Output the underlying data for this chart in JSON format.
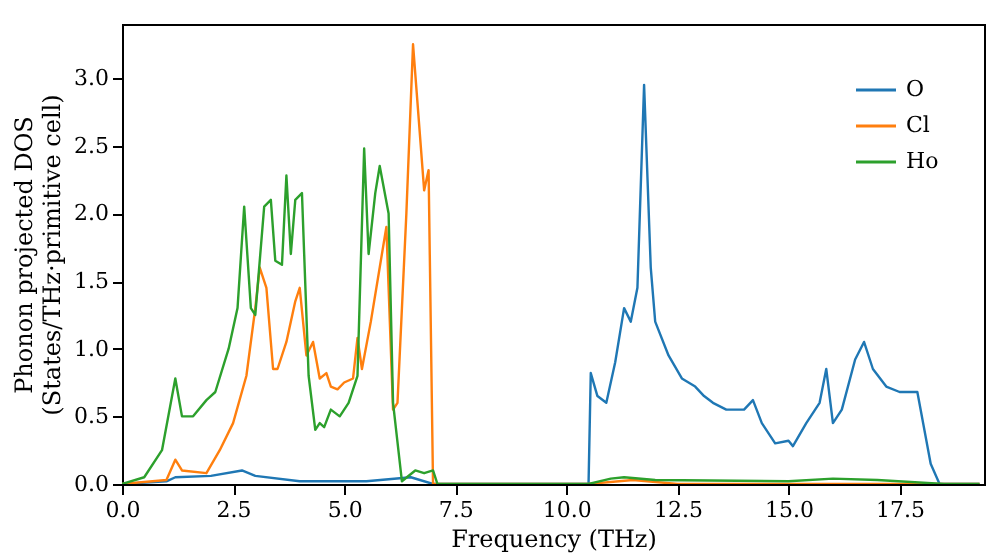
{
  "chart_data": {
    "type": "line",
    "xlabel": "Frequency (THz)",
    "ylabel": "Phonon projected DOS\n(States/THz·primitive cell)",
    "xlim": [
      0,
      19.4
    ],
    "ylim": [
      0,
      3.4
    ],
    "xticks": [
      {
        "value": 0,
        "label": "0.0"
      },
      2.5,
      {
        "value": 5,
        "label": "5.0"
      },
      7.5,
      {
        "value": 10,
        "label": "10.0"
      },
      12.5,
      {
        "value": 15,
        "label": "15.0"
      },
      17.5
    ],
    "yticks": [
      {
        "value": 0,
        "label": "0.0"
      },
      0.5,
      {
        "value": 1,
        "label": "1.0"
      },
      1.5,
      {
        "value": 2,
        "label": "2.0"
      },
      2.5,
      {
        "value": 3,
        "label": "3.0"
      }
    ],
    "legend": "top right",
    "grid": false,
    "line_style": "solid",
    "marker": "none",
    "series": [
      {
        "name": "O",
        "color": "#1f77b4",
        "x": [
          0,
          1,
          1.2,
          2.0,
          2.7,
          3.0,
          4,
          5.5,
          6.5,
          7.0,
          10.5,
          10.55,
          10.7,
          10.9,
          11.1,
          11.3,
          11.45,
          11.6,
          11.75,
          11.9,
          12.0,
          12.3,
          12.6,
          12.9,
          13.1,
          13.3,
          13.6,
          14.0,
          14.2,
          14.4,
          14.7,
          15.0,
          15.1,
          15.4,
          15.7,
          15.85,
          16.0,
          16.2,
          16.5,
          16.7,
          16.9,
          17.2,
          17.5,
          17.9,
          18.2,
          18.4,
          19.3
        ],
        "values": [
          0,
          0.02,
          0.05,
          0.06,
          0.1,
          0.06,
          0.02,
          0.02,
          0.05,
          0,
          0,
          0.82,
          0.65,
          0.6,
          0.9,
          1.3,
          1.2,
          1.45,
          2.95,
          1.6,
          1.2,
          0.95,
          0.78,
          0.72,
          0.65,
          0.6,
          0.55,
          0.55,
          0.62,
          0.45,
          0.3,
          0.32,
          0.28,
          0.45,
          0.6,
          0.85,
          0.45,
          0.55,
          0.92,
          1.05,
          0.85,
          0.72,
          0.68,
          0.68,
          0.15,
          0,
          0
        ]
      },
      {
        "name": "Cl",
        "color": "#ff7f0e",
        "x": [
          0,
          1.0,
          1.2,
          1.35,
          1.9,
          2.2,
          2.5,
          2.8,
          3.0,
          3.1,
          3.25,
          3.4,
          3.5,
          3.7,
          3.9,
          4.0,
          4.15,
          4.3,
          4.45,
          4.6,
          4.7,
          4.85,
          5.0,
          5.2,
          5.3,
          5.4,
          5.6,
          5.8,
          5.95,
          6.1,
          6.2,
          6.4,
          6.55,
          6.8,
          6.9,
          7.0,
          10.5,
          11.5,
          12.5,
          19.3
        ],
        "values": [
          0,
          0.03,
          0.18,
          0.1,
          0.08,
          0.25,
          0.45,
          0.8,
          1.3,
          1.6,
          1.45,
          0.85,
          0.85,
          1.05,
          1.35,
          1.45,
          0.95,
          1.05,
          0.78,
          0.82,
          0.72,
          0.7,
          0.75,
          0.78,
          1.08,
          0.85,
          1.2,
          1.6,
          1.9,
          0.55,
          0.6,
          2.0,
          3.25,
          2.17,
          2.32,
          0,
          0,
          0.03,
          0,
          0
        ]
      },
      {
        "name": "Ho",
        "color": "#2ca02c",
        "x": [
          0,
          0.5,
          0.9,
          1.2,
          1.35,
          1.6,
          1.9,
          2.1,
          2.4,
          2.6,
          2.75,
          2.9,
          3.0,
          3.2,
          3.35,
          3.45,
          3.6,
          3.7,
          3.8,
          3.9,
          4.05,
          4.2,
          4.35,
          4.45,
          4.55,
          4.7,
          4.9,
          5.1,
          5.3,
          5.45,
          5.55,
          5.7,
          5.8,
          6.0,
          6.1,
          6.3,
          6.6,
          6.8,
          7.0,
          7.1,
          10.5,
          11.0,
          11.3,
          12.0,
          15.0,
          16.0,
          17.0,
          18.5,
          19.3
        ],
        "values": [
          0,
          0.05,
          0.25,
          0.78,
          0.5,
          0.5,
          0.62,
          0.68,
          1.0,
          1.3,
          2.05,
          1.3,
          1.25,
          2.05,
          2.1,
          1.65,
          1.62,
          2.28,
          1.7,
          2.1,
          2.15,
          0.8,
          0.4,
          0.45,
          0.42,
          0.55,
          0.5,
          0.6,
          0.8,
          2.48,
          1.7,
          2.15,
          2.35,
          2.0,
          0.6,
          0.02,
          0.1,
          0.08,
          0.1,
          0,
          0,
          0.04,
          0.05,
          0.03,
          0.02,
          0.04,
          0.03,
          0,
          0
        ]
      }
    ]
  }
}
